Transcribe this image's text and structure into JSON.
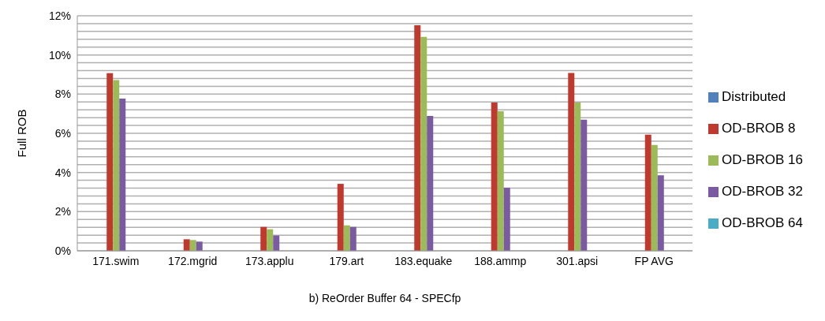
{
  "chart_data": {
    "type": "bar",
    "xlabel": "b) ReOrder Buffer  64 - SPECfp",
    "ylabel": "Full ROB",
    "categories": [
      "171.swim",
      "172.mgrid",
      "173.applu",
      "179.art",
      "183.equake",
      "188.ammp",
      "301.apsi",
      "FP AVG"
    ],
    "series": [
      {
        "name": "Distributed",
        "color": "#4f81bd",
        "values": [
          0,
          0,
          0,
          0,
          0,
          0,
          0,
          0
        ]
      },
      {
        "name": "OD-BROB 8",
        "color": "#c0392f",
        "values": [
          9.07,
          0.59,
          1.22,
          3.42,
          11.52,
          7.57,
          9.08,
          5.93
        ]
      },
      {
        "name": "OD-BROB 16",
        "color": "#9bbb59",
        "values": [
          8.72,
          0.55,
          1.1,
          1.3,
          10.92,
          7.13,
          7.57,
          5.41
        ]
      },
      {
        "name": "OD-BROB 32",
        "color": "#7a5aa0",
        "values": [
          7.77,
          0.47,
          0.78,
          1.22,
          6.89,
          3.22,
          6.69,
          3.86
        ]
      },
      {
        "name": "OD-BROB 64",
        "color": "#4bacc6",
        "values": [
          0,
          0,
          0,
          0,
          0,
          0,
          0,
          0
        ]
      }
    ],
    "ylim": [
      0,
      12
    ],
    "yticks": [
      {
        "value": 0,
        "label": "0%"
      },
      {
        "value": 0.4,
        "label": null
      },
      {
        "value": 0.8,
        "label": null
      },
      {
        "value": 1.2,
        "label": null
      },
      {
        "value": 1.6,
        "label": null
      },
      {
        "value": 2,
        "label": "2%"
      },
      {
        "value": 2.4,
        "label": null
      },
      {
        "value": 2.8,
        "label": null
      },
      {
        "value": 3.2,
        "label": null
      },
      {
        "value": 3.6,
        "label": null
      },
      {
        "value": 4,
        "label": "4%"
      },
      {
        "value": 4.4,
        "label": null
      },
      {
        "value": 4.8,
        "label": null
      },
      {
        "value": 5.2,
        "label": null
      },
      {
        "value": 5.6,
        "label": null
      },
      {
        "value": 6,
        "label": "6%"
      },
      {
        "value": 6.4,
        "label": null
      },
      {
        "value": 6.8,
        "label": null
      },
      {
        "value": 7.2,
        "label": null
      },
      {
        "value": 7.6,
        "label": null
      },
      {
        "value": 8,
        "label": "8%"
      },
      {
        "value": 8.4,
        "label": null
      },
      {
        "value": 8.8,
        "label": null
      },
      {
        "value": 9.2,
        "label": null
      },
      {
        "value": 9.6,
        "label": null
      },
      {
        "value": 10,
        "label": "10%"
      },
      {
        "value": 10.4,
        "label": null
      },
      {
        "value": 10.8,
        "label": null
      },
      {
        "value": 11.2,
        "label": null
      },
      {
        "value": 11.6,
        "label": null
      },
      {
        "value": 12,
        "label": "12%"
      }
    ],
    "grid": "y",
    "legend": "right"
  }
}
